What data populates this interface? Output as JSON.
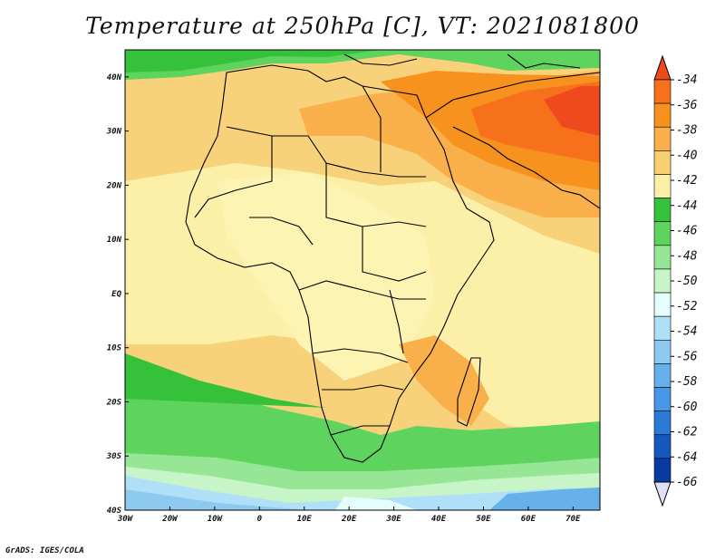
{
  "title": "Temperature at 250hPa [C], VT: 2021081800",
  "credit": "GrADS: IGES/COLA",
  "map": {
    "lat_labels": [
      "40N",
      "30N",
      "20N",
      "10N",
      "EQ",
      "10S",
      "20S",
      "30S",
      "40S"
    ],
    "lon_labels": [
      "30W",
      "20W",
      "10W",
      "0",
      "10E",
      "20E",
      "30E",
      "40E",
      "50E",
      "60E",
      "70E"
    ],
    "lat_range": [
      -40,
      45
    ],
    "lon_range": [
      -30,
      76
    ]
  },
  "colorbar": {
    "labels": [
      "-34",
      "-36",
      "-38",
      "-40",
      "-42",
      "-44",
      "-46",
      "-48",
      "-50",
      "-52",
      "-54",
      "-56",
      "-58",
      "-60",
      "-62",
      "-64",
      "-66"
    ],
    "colors": [
      "#f0d878",
      "#f8e8a0",
      "#fbf0b0",
      "#36c13a",
      "#5ed35e",
      "#96e696",
      "#b8f0b8",
      "#e6fdfd",
      "#b0e0f8",
      "#8ecaf0",
      "#66b0ec",
      "#4896e8",
      "#2c7ad8",
      "#1458be",
      "#0a3aa0",
      "#0a1a80"
    ],
    "top_color": "#ef4a1e",
    "bottom_color": "#e0e0f4",
    "segment_colors": [
      "#ef4a1e",
      "#f7701c",
      "#f8921e",
      "#f9b04a",
      "#f8d070",
      "#fcf0a8",
      "#36c13a",
      "#5ed35e",
      "#96e696",
      "#c8f5c8",
      "#e6fdfd",
      "#b0e0f8",
      "#8ecaf0",
      "#66b0ec",
      "#4896e8",
      "#2c7ad8",
      "#1458be",
      "#0a3aa0",
      "#0a1a80"
    ]
  }
}
